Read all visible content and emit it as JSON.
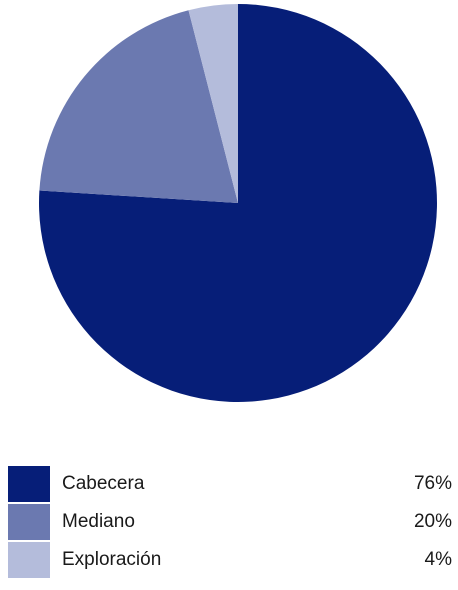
{
  "chart_data": {
    "type": "pie",
    "title": "",
    "start_angle_deg": 0,
    "direction": "clockwise",
    "slices": [
      {
        "label": "Cabecera",
        "value": 76,
        "value_label": "76%",
        "color": "#061e78"
      },
      {
        "label": "Mediano",
        "value": 20,
        "value_label": "20%",
        "color": "#6b79b0"
      },
      {
        "label": "Exploración",
        "value": 4,
        "value_label": "4%",
        "color": "#b4bcdb"
      }
    ],
    "legend_position": "bottom"
  }
}
